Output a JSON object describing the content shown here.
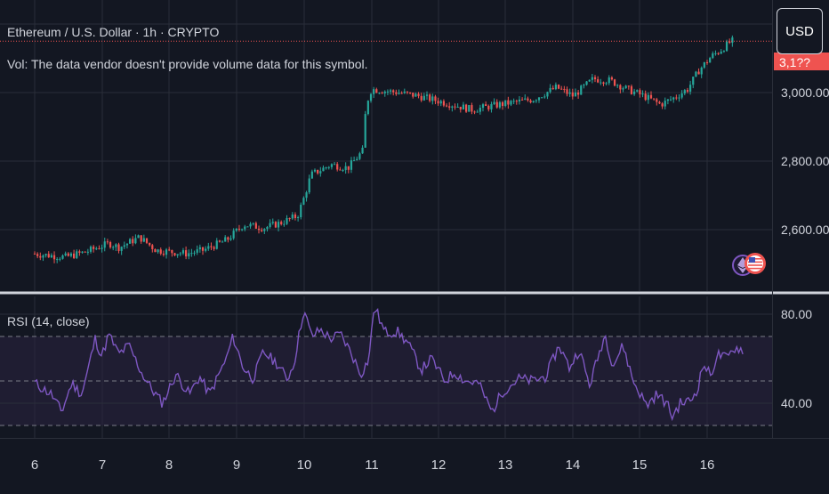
{
  "header": {
    "symbol_line": "Ethereum / U.S. Dollar · 1h · CRYPTO",
    "vol_note": "Vol: The data vendor doesn't provide volume data for this symbol.",
    "currency_button": "USD"
  },
  "colors": {
    "background": "#131722",
    "grid": "#2a2e39",
    "up": "#26a69a",
    "down": "#ef5350",
    "rsi_line": "#7e57c2",
    "rsi_band": "#2a2340",
    "price_line": "#ef5350",
    "text": "#d1d4dc"
  },
  "icons": {
    "logo": "ethereum-us-flag-badge-icon"
  },
  "chart_data": [
    {
      "type": "candlestick",
      "title": "Ethereum / U.S. Dollar · 1h · CRYPTO",
      "x": [
        "6",
        "7",
        "8",
        "9",
        "10",
        "11",
        "12",
        "13",
        "14",
        "15",
        "16"
      ],
      "ylim": [
        2440,
        3220
      ],
      "yticks": [
        "2,600.00",
        "2,800.00",
        "3,000.00"
      ],
      "price_label_partial": "3,1??",
      "grid": true,
      "keypoints": [
        [
          0.0,
          2530
        ],
        [
          0.5,
          2520
        ],
        [
          0.8,
          2535
        ],
        [
          1.15,
          2560
        ],
        [
          1.3,
          2548
        ],
        [
          1.6,
          2578
        ],
        [
          1.85,
          2540
        ],
        [
          2.3,
          2530
        ],
        [
          2.55,
          2540
        ],
        [
          2.9,
          2570
        ],
        [
          3.15,
          2615
        ],
        [
          3.45,
          2605
        ],
        [
          3.7,
          2620
        ],
        [
          3.95,
          2640
        ],
        [
          4.05,
          2695
        ],
        [
          4.15,
          2760
        ],
        [
          4.45,
          2790
        ],
        [
          4.7,
          2780
        ],
        [
          4.92,
          2830
        ],
        [
          4.97,
          2965
        ],
        [
          5.05,
          3010
        ],
        [
          5.45,
          3000
        ],
        [
          5.75,
          2990
        ],
        [
          6.15,
          2970
        ],
        [
          6.55,
          2950
        ],
        [
          6.95,
          2965
        ],
        [
          7.45,
          2980
        ],
        [
          7.8,
          3015
        ],
        [
          8.05,
          2990
        ],
        [
          8.35,
          3040
        ],
        [
          8.6,
          3035
        ],
        [
          8.85,
          3010
        ],
        [
          9.1,
          2990
        ],
        [
          9.35,
          2965
        ],
        [
          9.55,
          2985
        ],
        [
          9.75,
          3010
        ],
        [
          9.92,
          3065
        ],
        [
          10.1,
          3105
        ],
        [
          10.25,
          3125
        ],
        [
          10.4,
          3150
        ]
      ]
    },
    {
      "type": "line",
      "title": "RSI (14, close)",
      "x": [
        "6",
        "7",
        "8",
        "9",
        "10",
        "11",
        "12",
        "13",
        "14",
        "15",
        "16"
      ],
      "ylim": [
        26,
        84
      ],
      "yticks": [
        "40.00",
        "80.00"
      ],
      "bands": [
        30,
        50,
        70
      ],
      "keypoints": [
        [
          0.0,
          49
        ],
        [
          0.25,
          44
        ],
        [
          0.4,
          36
        ],
        [
          0.55,
          49
        ],
        [
          0.7,
          44
        ],
        [
          0.8,
          56
        ],
        [
          0.9,
          69
        ],
        [
          1.0,
          61
        ],
        [
          1.1,
          71
        ],
        [
          1.25,
          62
        ],
        [
          1.4,
          66
        ],
        [
          1.6,
          53
        ],
        [
          1.75,
          46
        ],
        [
          1.9,
          40
        ],
        [
          2.1,
          53
        ],
        [
          2.3,
          44
        ],
        [
          2.45,
          52
        ],
        [
          2.6,
          44
        ],
        [
          2.85,
          60
        ],
        [
          2.95,
          70
        ],
        [
          3.1,
          56
        ],
        [
          3.25,
          51
        ],
        [
          3.4,
          63
        ],
        [
          3.6,
          58
        ],
        [
          3.75,
          51
        ],
        [
          3.85,
          57
        ],
        [
          4.0,
          82
        ],
        [
          4.12,
          70
        ],
        [
          4.25,
          73
        ],
        [
          4.4,
          69
        ],
        [
          4.55,
          71
        ],
        [
          4.7,
          63
        ],
        [
          4.85,
          53
        ],
        [
          4.97,
          60
        ],
        [
          5.05,
          84
        ],
        [
          5.2,
          72
        ],
        [
          5.4,
          72
        ],
        [
          5.55,
          67
        ],
        [
          5.75,
          55
        ],
        [
          5.9,
          60
        ],
        [
          6.1,
          50
        ],
        [
          6.25,
          54
        ],
        [
          6.4,
          50
        ],
        [
          6.6,
          49
        ],
        [
          6.8,
          36
        ],
        [
          6.95,
          45
        ],
        [
          7.2,
          51
        ],
        [
          7.4,
          50
        ],
        [
          7.6,
          52
        ],
        [
          7.8,
          66
        ],
        [
          7.95,
          56
        ],
        [
          8.1,
          64
        ],
        [
          8.25,
          48
        ],
        [
          8.35,
          58
        ],
        [
          8.48,
          71
        ],
        [
          8.6,
          57
        ],
        [
          8.75,
          66
        ],
        [
          8.9,
          50
        ],
        [
          9.1,
          39
        ],
        [
          9.25,
          44
        ],
        [
          9.4,
          40
        ],
        [
          9.48,
          34
        ],
        [
          9.6,
          40
        ],
        [
          9.75,
          41
        ],
        [
          9.85,
          46
        ],
        [
          9.95,
          58
        ],
        [
          10.05,
          52
        ],
        [
          10.15,
          62
        ],
        [
          10.3,
          60
        ],
        [
          10.4,
          65
        ],
        [
          10.55,
          64
        ]
      ]
    }
  ]
}
